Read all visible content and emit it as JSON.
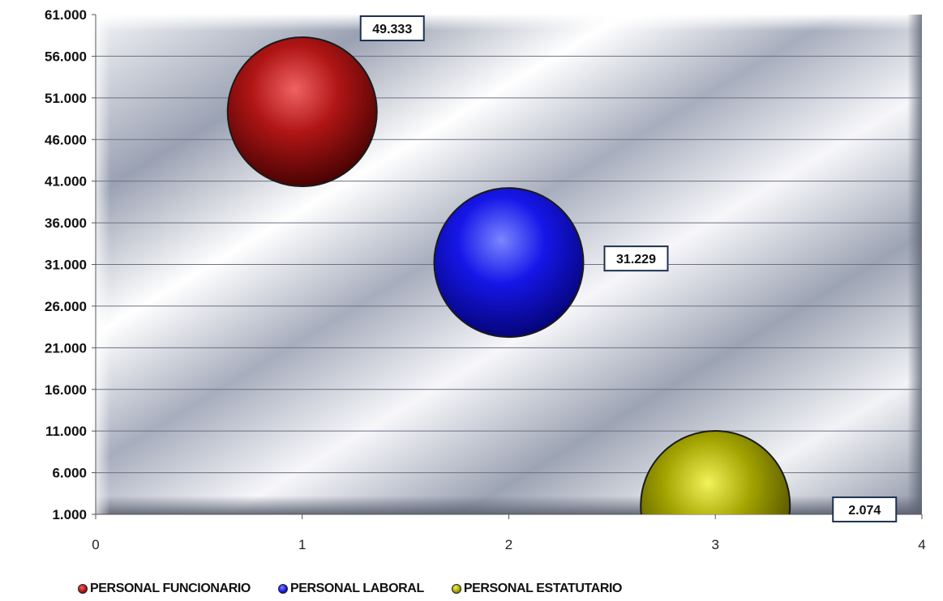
{
  "chart_data": {
    "type": "bubble",
    "title": "",
    "xlabel": "",
    "ylabel": "",
    "xlim": [
      0,
      4
    ],
    "ylim": [
      1000,
      61000
    ],
    "x_ticks": [
      "0",
      "1",
      "2",
      "3",
      "4"
    ],
    "y_ticks": [
      "61.000",
      "56.000",
      "51.000",
      "46.000",
      "41.000",
      "36.000",
      "31.000",
      "26.000",
      "21.000",
      "16.000",
      "11.000",
      "6.000",
      "1.000"
    ],
    "grid": "horizontal",
    "legend_position": "bottom",
    "series": [
      {
        "name": "PERSONAL FUNCIONARIO",
        "x": 1,
        "y": 49333,
        "label": "49.333",
        "color": "#b01010"
      },
      {
        "name": "PERSONAL LABORAL",
        "x": 2,
        "y": 31229,
        "label": "31.229",
        "color": "#1a1aee"
      },
      {
        "name": "PERSONAL ESTATUTARIO",
        "x": 3,
        "y": 2074,
        "label": "2.074",
        "color": "#a8a800"
      }
    ]
  }
}
